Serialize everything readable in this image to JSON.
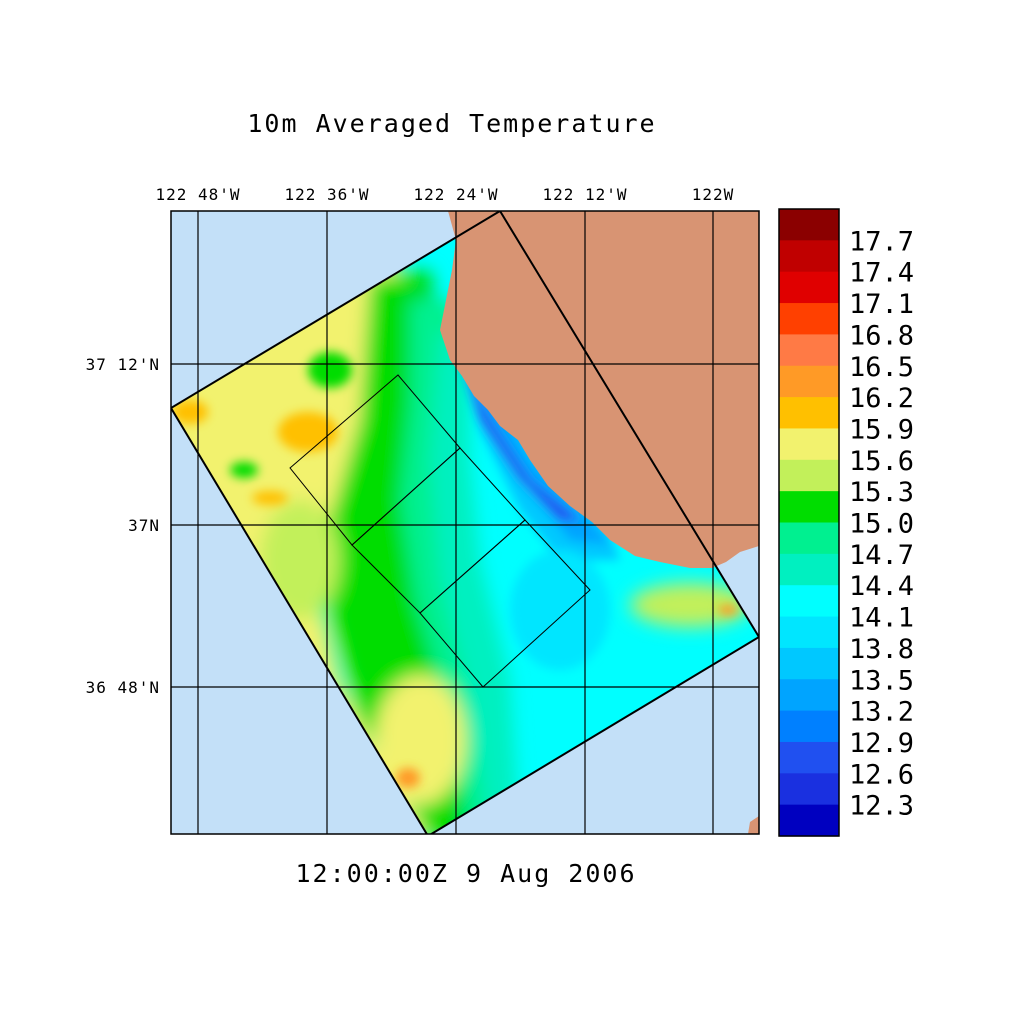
{
  "title": "10m Averaged Temperature",
  "timestamp": "12:00:00Z   9 Aug 2006",
  "map": {
    "lon_ticks": [
      "122 48'W",
      "122 36'W",
      "122 24'W",
      "122 12'W",
      "122W"
    ],
    "lat_ticks": [
      "37 12'N",
      "37N",
      "36 48'N"
    ],
    "colors": {
      "ocean": "#c3e0f8",
      "land": "#d89473"
    }
  },
  "colorbar": {
    "labels": [
      "17.7",
      "17.4",
      "17.1",
      "16.8",
      "16.5",
      "16.2",
      "15.9",
      "15.6",
      "15.3",
      "15.0",
      "14.7",
      "14.4",
      "14.1",
      "13.8",
      "13.5",
      "13.2",
      "12.9",
      "12.6",
      "12.3"
    ],
    "colors": [
      "#8b0000",
      "#c00000",
      "#e00000",
      "#ff4000",
      "#ff7a45",
      "#ff9a26",
      "#ffc000",
      "#f2f26e",
      "#c2f05a",
      "#00dd00",
      "#00f090",
      "#00f0c0",
      "#00ffff",
      "#00e6ff",
      "#00c8ff",
      "#00a4ff",
      "#0080ff",
      "#2050f0",
      "#1a30e0",
      "#0000c0"
    ]
  }
}
